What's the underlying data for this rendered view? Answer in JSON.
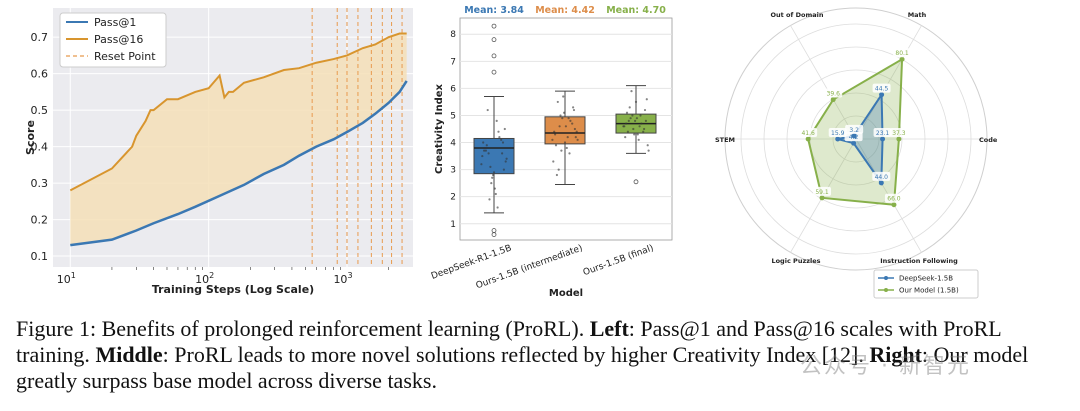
{
  "chart_data": [
    {
      "type": "line",
      "title": "",
      "xlabel": "Training Steps (Log Scale)",
      "ylabel": "Score",
      "xscale": "log",
      "xlim": [
        7.5,
        3000
      ],
      "ylim": [
        0.07,
        0.78
      ],
      "x_ticks": [
        {
          "value": 10,
          "base": "10",
          "exp": "1"
        },
        {
          "value": 100,
          "base": "10",
          "exp": "2"
        },
        {
          "value": 1000,
          "base": "10",
          "exp": "3"
        }
      ],
      "y_ticks": [
        0.1,
        0.2,
        0.3,
        0.4,
        0.5,
        0.6,
        0.7
      ],
      "y_tick_labels": [
        "0.1",
        "0.2",
        "0.3",
        "0.4",
        "0.5",
        "0.6",
        "0.7"
      ],
      "legend": [
        "Pass@1",
        "Pass@16",
        "Reset Point"
      ],
      "legend_position": "top-left",
      "colors": {
        "pass1": "#3b78b3",
        "pass16": "#d8952e",
        "reset": "#e89a4e",
        "fill": "#f5dfb7"
      },
      "series": [
        {
          "name": "Pass@1",
          "x": [
            10,
            20,
            30,
            40,
            60,
            80,
            120,
            180,
            250,
            350,
            450,
            600,
            800,
            1000,
            1300,
            1600,
            2000,
            2400,
            2700
          ],
          "values": [
            0.13,
            0.145,
            0.17,
            0.19,
            0.215,
            0.235,
            0.265,
            0.295,
            0.325,
            0.35,
            0.375,
            0.4,
            0.42,
            0.44,
            0.465,
            0.49,
            0.52,
            0.55,
            0.58
          ]
        },
        {
          "name": "Pass@16",
          "x": [
            10,
            20,
            28,
            30,
            35,
            38,
            40,
            50,
            60,
            80,
            100,
            120,
            130,
            140,
            150,
            180,
            250,
            350,
            450,
            600,
            800,
            1000,
            1300,
            1600,
            2000,
            2400,
            2700
          ],
          "values": [
            0.28,
            0.34,
            0.4,
            0.43,
            0.47,
            0.5,
            0.5,
            0.53,
            0.53,
            0.55,
            0.56,
            0.595,
            0.535,
            0.55,
            0.55,
            0.575,
            0.59,
            0.61,
            0.615,
            0.63,
            0.64,
            0.65,
            0.67,
            0.68,
            0.7,
            0.71,
            0.71
          ]
        }
      ],
      "reset_points": [
        560,
        850,
        1000,
        1200,
        1500,
        1800,
        2100,
        2500
      ]
    },
    {
      "type": "box",
      "title": "",
      "xlabel": "Model",
      "ylabel": "Creativity Index",
      "ylim": [
        0.4,
        8.6
      ],
      "y_ticks": [
        1,
        2,
        3,
        4,
        5,
        6,
        7,
        8
      ],
      "y_tick_labels": [
        "1",
        "2",
        "3",
        "4",
        "5",
        "6",
        "7",
        "8"
      ],
      "categories": [
        "DeepSeek-R1-1.5B",
        "Ours-1.5B (intermediate)",
        "Ours-1.5B (final)"
      ],
      "mean_labels": [
        "Mean: 3.84",
        "Mean: 4.42",
        "Mean: 4.70"
      ],
      "colors": [
        "#3b78b3",
        "#dd8d4a",
        "#87b04a"
      ],
      "boxes": [
        {
          "min": 1.4,
          "q1": 2.85,
          "median": 3.8,
          "q3": 4.15,
          "max": 5.7,
          "outliers": [
            0.6,
            0.75,
            6.6,
            7.2,
            7.8,
            8.3
          ]
        },
        {
          "min": 2.45,
          "q1": 3.95,
          "median": 4.35,
          "q3": 4.95,
          "max": 5.9,
          "outliers": []
        },
        {
          "min": 3.6,
          "q1": 4.35,
          "median": 4.7,
          "q3": 5.05,
          "max": 6.1,
          "outliers": [
            2.55
          ]
        }
      ],
      "jitter": [
        [
          3.2,
          3.6,
          2.1,
          4.0,
          3.7,
          2.5,
          4.4,
          3.3,
          3.9,
          2.9,
          4.1,
          3.5,
          1.9,
          4.8,
          3.0,
          3.8,
          2.7,
          4.2,
          3.4,
          5.2,
          2.3,
          3.6,
          4.0,
          3.1,
          1.6,
          4.5,
          3.7,
          2.8
        ],
        [
          4.1,
          4.6,
          3.8,
          5.2,
          4.3,
          4.9,
          3.6,
          4.4,
          5.5,
          4.0,
          4.7,
          3.3,
          5.0,
          4.2,
          4.5,
          3.9,
          5.7,
          4.8,
          4.1,
          3.0,
          4.6,
          5.3,
          4.4,
          3.7,
          4.9,
          4.2,
          2.8,
          5.1
        ],
        [
          4.6,
          4.9,
          4.3,
          5.2,
          4.7,
          4.5,
          5.0,
          3.9,
          4.8,
          5.5,
          4.4,
          4.6,
          5.9,
          4.1,
          4.8,
          5.1,
          4.3,
          4.7,
          3.7,
          5.3,
          4.9,
          4.5,
          4.2,
          5.0,
          4.6,
          5.6,
          4.4,
          4.8
        ]
      ]
    },
    {
      "type": "radar",
      "title": "",
      "axes": [
        "Math",
        "Code",
        "Instruction Following",
        "Logic Puzzles",
        "STEM",
        "Out of Domain"
      ],
      "rmax": 100,
      "grid_levels": [
        20,
        40,
        60,
        80,
        100
      ],
      "legend": [
        "DeepSeek-1.5B",
        "Our Model (1.5B)"
      ],
      "legend_position": "bottom-right",
      "colors": {
        "deepseek": "#3b78b3",
        "ours": "#87b04a"
      },
      "series": [
        {
          "name": "DeepSeek-1.5B",
          "values": [
            44.5,
            23.1,
            44.0,
            4.2,
            15.9,
            3.2
          ],
          "labels": [
            "44.5",
            "23.1",
            "44.0",
            "4.2",
            "15.9",
            "3.2"
          ]
        },
        {
          "name": "Our Model (1.5B)",
          "values": [
            80.1,
            37.3,
            66.0,
            59.1,
            41.6,
            39.6
          ],
          "labels": [
            "80.1",
            "37.3",
            "66.0",
            "59.1",
            "41.6",
            "39.6"
          ]
        }
      ]
    }
  ],
  "caption": {
    "figure_label": "Figure 1:",
    "intro": " Benefits of prolonged reinforcement learning (ProRL). ",
    "left_label": "Left",
    "left_text": ": Pass@1 and Pass@16 scales with ProRL training. ",
    "middle_label": "Middle",
    "middle_text": ": ProRL leads to more novel solutions reflected by higher Creativity Index [12]. ",
    "right_label": "Right",
    "right_text": ": Our model greatly surpass base model across diverse tasks."
  },
  "watermark": "公众号 · 新智元"
}
